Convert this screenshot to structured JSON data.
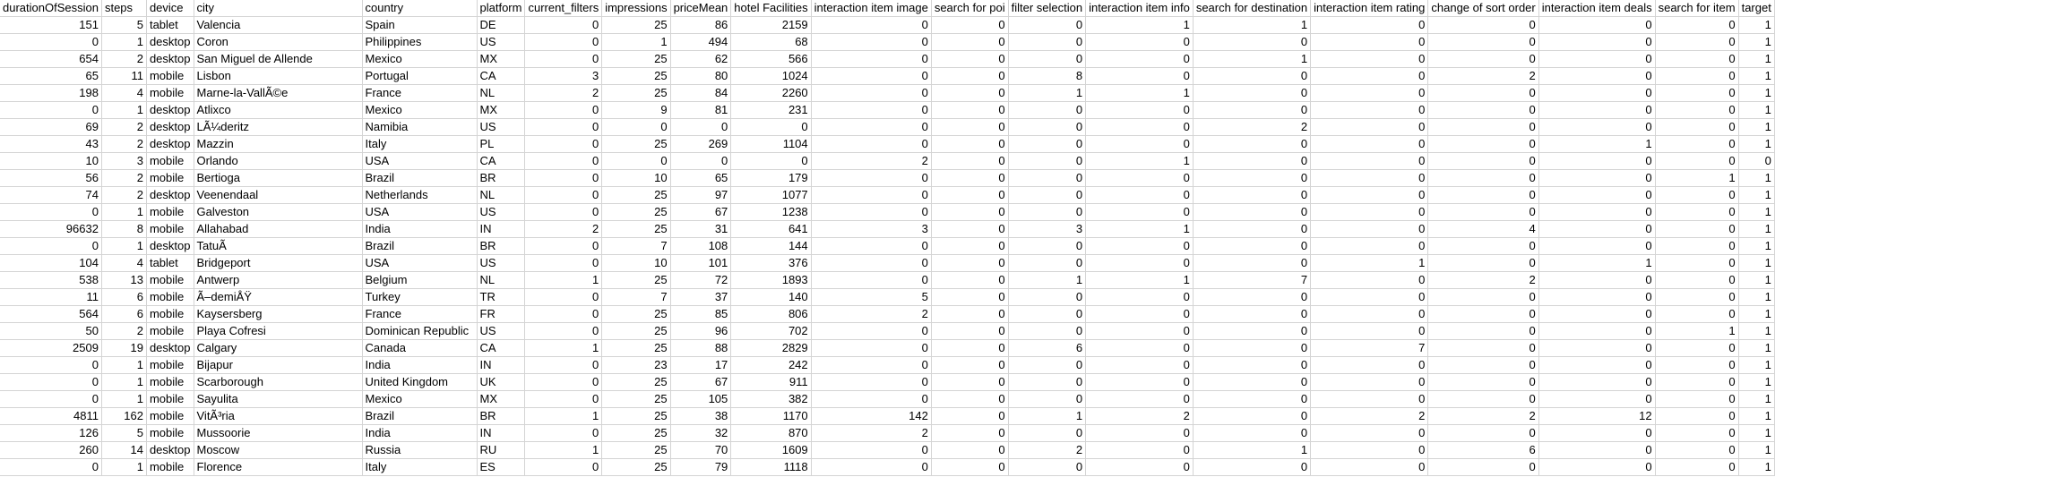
{
  "sheet": {
    "columns": [
      {
        "key": "duration",
        "label": "durationOfSession",
        "type": "num"
      },
      {
        "key": "steps",
        "label": "steps",
        "type": "num"
      },
      {
        "key": "device",
        "label": "device",
        "type": "txt"
      },
      {
        "key": "city",
        "label": "city",
        "type": "txt"
      },
      {
        "key": "country",
        "label": "country",
        "type": "txt"
      },
      {
        "key": "platform",
        "label": "platform",
        "type": "txt"
      },
      {
        "key": "current_filters",
        "label": "current_filters",
        "type": "num"
      },
      {
        "key": "impressions",
        "label": "impressions",
        "type": "num"
      },
      {
        "key": "priceMean",
        "label": "priceMean",
        "type": "num"
      },
      {
        "key": "hotel_facilities",
        "label": "hotel Facilities",
        "type": "num"
      },
      {
        "key": "ii_image",
        "label": "interaction item image",
        "type": "num"
      },
      {
        "key": "search_poi",
        "label": "search for poi",
        "type": "num"
      },
      {
        "key": "filter_selection",
        "label": "filter selection",
        "type": "num"
      },
      {
        "key": "ii_info",
        "label": "interaction item info",
        "type": "num"
      },
      {
        "key": "search_destination",
        "label": "search for destination",
        "type": "num"
      },
      {
        "key": "ii_rating",
        "label": "interaction item rating",
        "type": "num"
      },
      {
        "key": "sort_order",
        "label": "change of sort order",
        "type": "num"
      },
      {
        "key": "ii_deals",
        "label": "interaction item deals",
        "type": "num"
      },
      {
        "key": "search_item",
        "label": "search for item",
        "type": "num"
      },
      {
        "key": "target",
        "label": "target",
        "type": "num"
      }
    ],
    "rows": [
      [
        "151",
        "5",
        "tablet",
        "Valencia",
        "Spain",
        "DE",
        "0",
        "25",
        "86",
        "2159",
        "0",
        "0",
        "0",
        "1",
        "1",
        "0",
        "0",
        "0",
        "0",
        "1"
      ],
      [
        "0",
        "1",
        "desktop",
        "Coron",
        "Philippines",
        "US",
        "0",
        "1",
        "494",
        "68",
        "0",
        "0",
        "0",
        "0",
        "0",
        "0",
        "0",
        "0",
        "0",
        "1"
      ],
      [
        "654",
        "2",
        "desktop",
        "San Miguel de Allende",
        "Mexico",
        "MX",
        "0",
        "25",
        "62",
        "566",
        "0",
        "0",
        "0",
        "0",
        "1",
        "0",
        "0",
        "0",
        "0",
        "1"
      ],
      [
        "65",
        "11",
        "mobile",
        "Lisbon",
        "Portugal",
        "CA",
        "3",
        "25",
        "80",
        "1024",
        "0",
        "0",
        "8",
        "0",
        "0",
        "0",
        "2",
        "0",
        "0",
        "1"
      ],
      [
        "198",
        "4",
        "mobile",
        "Marne-la-VallÃ©e",
        "France",
        "NL",
        "2",
        "25",
        "84",
        "2260",
        "0",
        "0",
        "1",
        "1",
        "0",
        "0",
        "0",
        "0",
        "0",
        "1"
      ],
      [
        "0",
        "1",
        "desktop",
        "Atlixco",
        "Mexico",
        "MX",
        "0",
        "9",
        "81",
        "231",
        "0",
        "0",
        "0",
        "0",
        "0",
        "0",
        "0",
        "0",
        "0",
        "1"
      ],
      [
        "69",
        "2",
        "desktop",
        "LÃ¼deritz",
        "Namibia",
        "US",
        "0",
        "0",
        "0",
        "0",
        "0",
        "0",
        "0",
        "0",
        "2",
        "0",
        "0",
        "0",
        "0",
        "1"
      ],
      [
        "43",
        "2",
        "desktop",
        "Mazzin",
        "Italy",
        "PL",
        "0",
        "25",
        "269",
        "1104",
        "0",
        "0",
        "0",
        "0",
        "0",
        "0",
        "0",
        "1",
        "0",
        "1"
      ],
      [
        "10",
        "3",
        "mobile",
        "Orlando",
        "USA",
        "CA",
        "0",
        "0",
        "0",
        "0",
        "2",
        "0",
        "0",
        "1",
        "0",
        "0",
        "0",
        "0",
        "0",
        "0"
      ],
      [
        "56",
        "2",
        "mobile",
        "Bertioga",
        "Brazil",
        "BR",
        "0",
        "10",
        "65",
        "179",
        "0",
        "0",
        "0",
        "0",
        "0",
        "0",
        "0",
        "0",
        "1",
        "1"
      ],
      [
        "74",
        "2",
        "desktop",
        "Veenendaal",
        "Netherlands",
        "NL",
        "0",
        "25",
        "97",
        "1077",
        "0",
        "0",
        "0",
        "0",
        "0",
        "0",
        "0",
        "0",
        "0",
        "1"
      ],
      [
        "0",
        "1",
        "mobile",
        "Galveston",
        "USA",
        "US",
        "0",
        "25",
        "67",
        "1238",
        "0",
        "0",
        "0",
        "0",
        "0",
        "0",
        "0",
        "0",
        "0",
        "1"
      ],
      [
        "96632",
        "8",
        "mobile",
        "Allahabad",
        "India",
        "IN",
        "2",
        "25",
        "31",
        "641",
        "3",
        "0",
        "3",
        "1",
        "0",
        "0",
        "4",
        "0",
        "0",
        "1"
      ],
      [
        "0",
        "1",
        "desktop",
        "TatuÃ­",
        "Brazil",
        "BR",
        "0",
        "7",
        "108",
        "144",
        "0",
        "0",
        "0",
        "0",
        "0",
        "0",
        "0",
        "0",
        "0",
        "1"
      ],
      [
        "104",
        "4",
        "tablet",
        "Bridgeport",
        "USA",
        "US",
        "0",
        "10",
        "101",
        "376",
        "0",
        "0",
        "0",
        "0",
        "0",
        "1",
        "0",
        "1",
        "0",
        "1"
      ],
      [
        "538",
        "13",
        "mobile",
        "Antwerp",
        "Belgium",
        "NL",
        "1",
        "25",
        "72",
        "1893",
        "0",
        "0",
        "1",
        "1",
        "7",
        "0",
        "2",
        "0",
        "0",
        "1"
      ],
      [
        "11",
        "6",
        "mobile",
        "Ã–demiÅŸ",
        "Turkey",
        "TR",
        "0",
        "7",
        "37",
        "140",
        "5",
        "0",
        "0",
        "0",
        "0",
        "0",
        "0",
        "0",
        "0",
        "1"
      ],
      [
        "564",
        "6",
        "mobile",
        "Kaysersberg",
        "France",
        "FR",
        "0",
        "25",
        "85",
        "806",
        "2",
        "0",
        "0",
        "0",
        "0",
        "0",
        "0",
        "0",
        "0",
        "1"
      ],
      [
        "50",
        "2",
        "mobile",
        "Playa Cofresi",
        "Dominican Republic",
        "US",
        "0",
        "25",
        "96",
        "702",
        "0",
        "0",
        "0",
        "0",
        "0",
        "0",
        "0",
        "0",
        "1",
        "1"
      ],
      [
        "2509",
        "19",
        "desktop",
        "Calgary",
        "Canada",
        "CA",
        "1",
        "25",
        "88",
        "2829",
        "0",
        "0",
        "6",
        "0",
        "0",
        "7",
        "0",
        "0",
        "0",
        "1"
      ],
      [
        "0",
        "1",
        "mobile",
        "Bijapur",
        "India",
        "IN",
        "0",
        "23",
        "17",
        "242",
        "0",
        "0",
        "0",
        "0",
        "0",
        "0",
        "0",
        "0",
        "0",
        "1"
      ],
      [
        "0",
        "1",
        "mobile",
        "Scarborough",
        "United Kingdom",
        "UK",
        "0",
        "25",
        "67",
        "911",
        "0",
        "0",
        "0",
        "0",
        "0",
        "0",
        "0",
        "0",
        "0",
        "1"
      ],
      [
        "0",
        "1",
        "mobile",
        "Sayulita",
        "Mexico",
        "MX",
        "0",
        "25",
        "105",
        "382",
        "0",
        "0",
        "0",
        "0",
        "0",
        "0",
        "0",
        "0",
        "0",
        "1"
      ],
      [
        "4811",
        "162",
        "mobile",
        "VitÃ³ria",
        "Brazil",
        "BR",
        "1",
        "25",
        "38",
        "1170",
        "142",
        "0",
        "1",
        "2",
        "0",
        "2",
        "2",
        "12",
        "0",
        "1"
      ],
      [
        "126",
        "5",
        "mobile",
        "Mussoorie",
        "India",
        "IN",
        "0",
        "25",
        "32",
        "870",
        "2",
        "0",
        "0",
        "0",
        "0",
        "0",
        "0",
        "0",
        "0",
        "1"
      ],
      [
        "260",
        "14",
        "desktop",
        "Moscow",
        "Russia",
        "RU",
        "1",
        "25",
        "70",
        "1609",
        "0",
        "0",
        "2",
        "0",
        "1",
        "0",
        "6",
        "0",
        "0",
        "1"
      ],
      [
        "0",
        "1",
        "mobile",
        "Florence",
        "Italy",
        "ES",
        "0",
        "25",
        "79",
        "1118",
        "0",
        "0",
        "0",
        "0",
        "0",
        "0",
        "0",
        "0",
        "0",
        "1"
      ]
    ]
  }
}
